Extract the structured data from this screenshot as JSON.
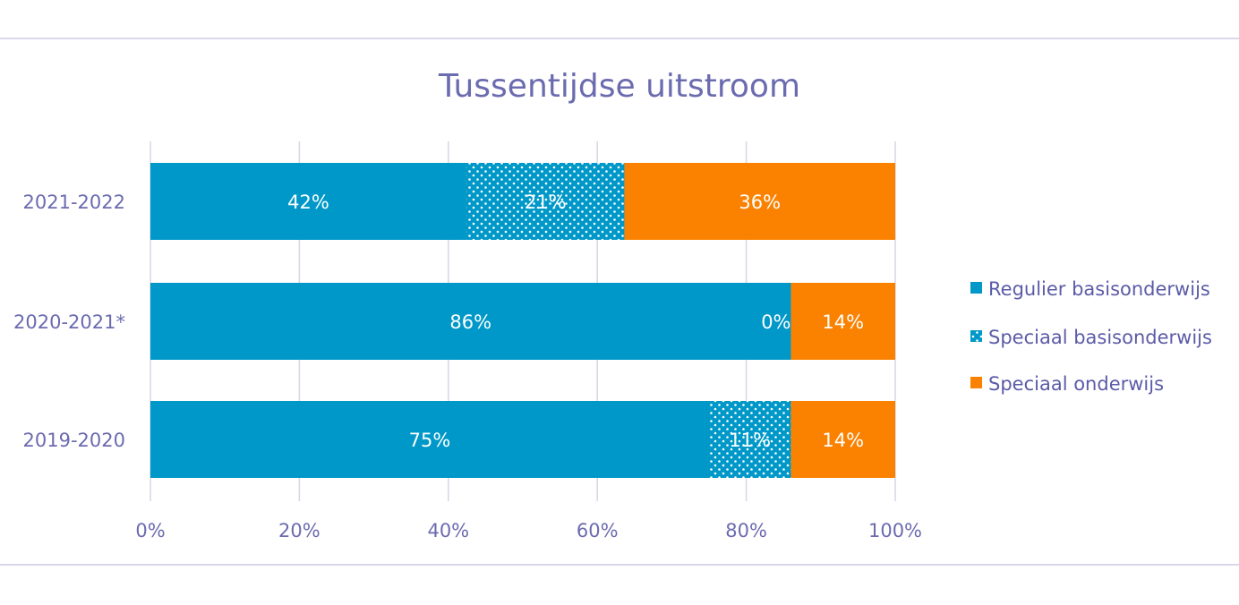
{
  "chart_data": {
    "type": "bar",
    "orientation": "horizontal",
    "stacked": "percent",
    "title": "Tussentijdse uitstroom",
    "categories": [
      "2021-2022",
      "2020-2021*",
      "2019-2020"
    ],
    "series": [
      {
        "name": "Regulier basisonderwijs",
        "values": [
          42,
          86,
          75
        ],
        "labels": [
          "42%",
          "86%",
          "75%"
        ],
        "color": "#0098c8",
        "pattern": "solid"
      },
      {
        "name": "Speciaal basisonderwijs",
        "values": [
          21,
          0,
          11
        ],
        "labels": [
          "21%",
          "0%",
          "11%"
        ],
        "color": "#0098c8",
        "pattern": "dotted"
      },
      {
        "name": "Speciaal onderwijs",
        "values": [
          36,
          14,
          14
        ],
        "labels": [
          "36%",
          "14%",
          "14%"
        ],
        "color": "#fa8200",
        "pattern": "solid"
      }
    ],
    "xticks": [
      "0%",
      "20%",
      "40%",
      "60%",
      "80%",
      "100%"
    ],
    "xlim": [
      0,
      100
    ],
    "grid": true,
    "legend": "right"
  }
}
